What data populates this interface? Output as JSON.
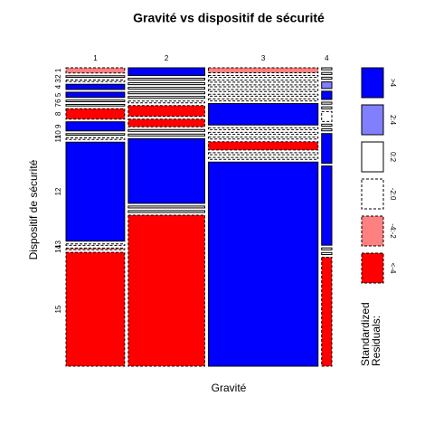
{
  "chart_data": {
    "type": "mosaic",
    "title": "Gravité vs dispositif de sécurité",
    "xlabel": "Gravité",
    "ylabel": "Dispositif de sécurité",
    "categories": [
      "1",
      "2",
      "3",
      "4"
    ],
    "col_widths": [
      23,
      30,
      43,
      4
    ],
    "rows": [
      "1",
      "2",
      "3",
      "4",
      "5",
      "6",
      "7",
      "8",
      "9",
      "10",
      "11",
      "12",
      "13",
      "14",
      "15"
    ],
    "cells": [
      [
        2,
        0.6,
        0.6,
        2,
        2,
        0.6,
        0.6,
        4,
        3.5,
        0.6,
        0.6,
        38,
        0.6,
        0.6,
        43.7
      ],
      [
        2.5,
        0.6,
        0.6,
        0.6,
        0.6,
        0.6,
        0.6,
        3.5,
        2.5,
        0.6,
        0.6,
        21,
        0.6,
        0.6,
        49
      ],
      [
        1.5,
        0.6,
        0.6,
        0.6,
        0.6,
        0.6,
        0.6,
        6.5,
        0.6,
        0.6,
        0.6,
        2.5,
        0.6,
        0.6,
        62
      ],
      [
        0.6,
        0.6,
        0.6,
        2,
        2.5,
        0.6,
        0.6,
        3,
        0.6,
        0.6,
        9,
        24,
        0.6,
        0.6,
        33
      ]
    ],
    "residual_class": [
      [
        4,
        2,
        3,
        0,
        0,
        2,
        2,
        5,
        0,
        2,
        3,
        0,
        3,
        4,
        5
      ],
      [
        0,
        2,
        2,
        2,
        2,
        2,
        3,
        5,
        5,
        2,
        2,
        0,
        2,
        2,
        5
      ],
      [
        4,
        3,
        3,
        3,
        3,
        3,
        3,
        0,
        3,
        3,
        3,
        5,
        3,
        3,
        0
      ],
      [
        2,
        2,
        2,
        1,
        0,
        2,
        2,
        3,
        2,
        2,
        0,
        0,
        2,
        2,
        5
      ]
    ],
    "legend": {
      "title": [
        "Standardized",
        "Residuals:"
      ],
      "classes": [
        {
          "label": ">4",
          "color": "#0000ff",
          "dashed": false
        },
        {
          "label": "2:4",
          "color": "#8080ff",
          "dashed": false
        },
        {
          "label": "0:2",
          "color": "#ffffff",
          "dashed": false
        },
        {
          "label": "-2:0",
          "color": "#ffffff",
          "dashed": true
        },
        {
          "label": "-4:-2",
          "color": "#ff8080",
          "dashed": true
        },
        {
          "label": "<-4",
          "color": "#ff0000",
          "dashed": true
        }
      ]
    }
  }
}
